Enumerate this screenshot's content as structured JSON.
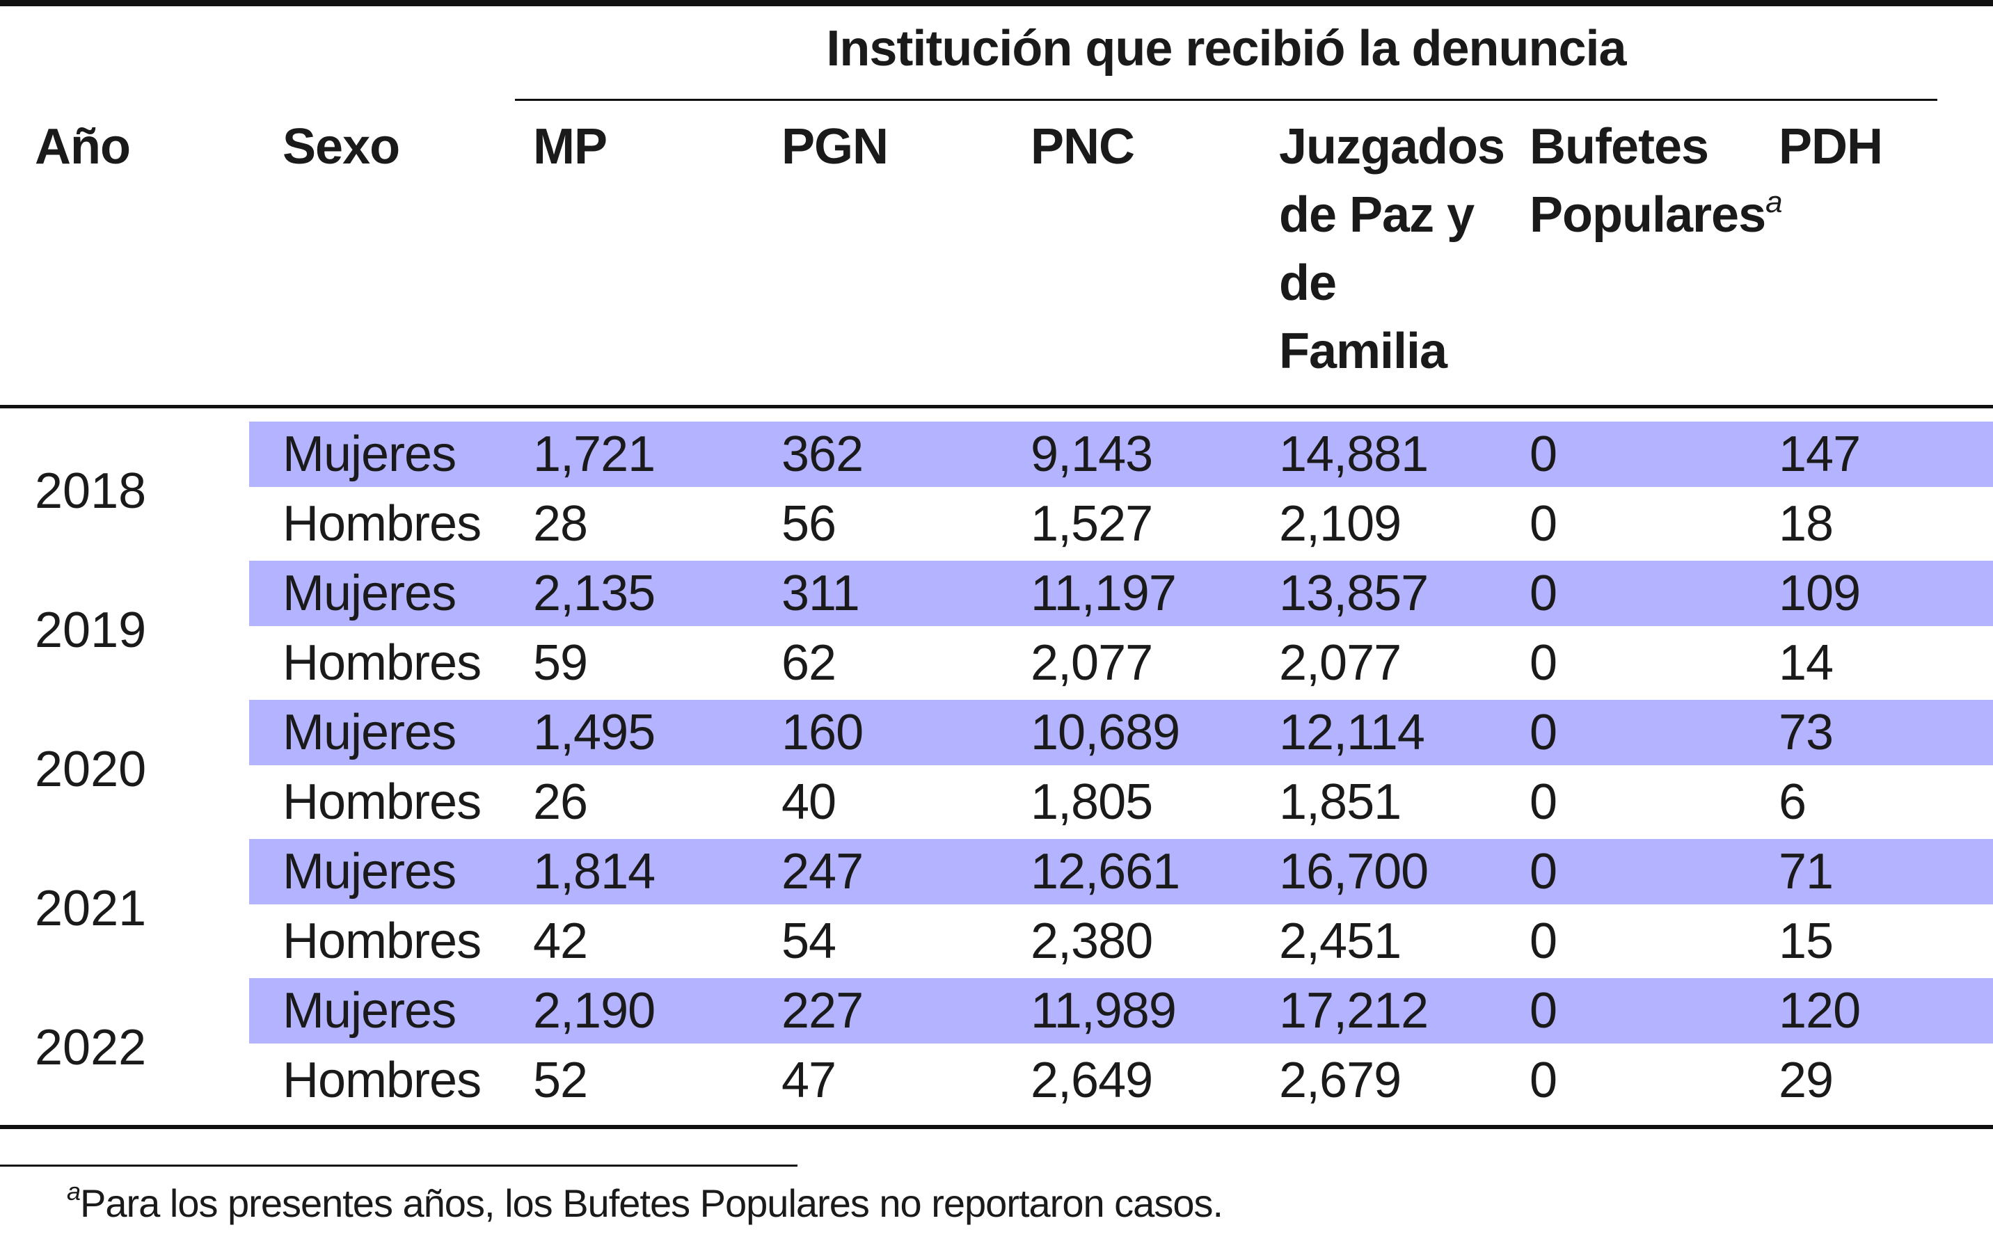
{
  "header": {
    "group_title": "Institución que recibió la denuncia",
    "col_year": "Año",
    "col_sex": "Sexo",
    "col_mp": "MP",
    "col_pgn": "PGN",
    "col_pnc": "PNC",
    "col_juzgados": "Juzgados de Paz y de Familia",
    "col_bufetes": "Bufetes Populares",
    "col_bufetes_marker": "a",
    "col_pdh": "PDH"
  },
  "rows": [
    {
      "year": "2018",
      "mujeres": {
        "sexo": "Mujeres",
        "mp": "1,721",
        "pgn": "362",
        "pnc": "9,143",
        "juzgados": "14,881",
        "bufetes": "0",
        "pdh": "147"
      },
      "hombres": {
        "sexo": "Hombres",
        "mp": "28",
        "pgn": "56",
        "pnc": "1,527",
        "juzgados": "2,109",
        "bufetes": "0",
        "pdh": "18"
      }
    },
    {
      "year": "2019",
      "mujeres": {
        "sexo": "Mujeres",
        "mp": "2,135",
        "pgn": "311",
        "pnc": "11,197",
        "juzgados": "13,857",
        "bufetes": "0",
        "pdh": "109"
      },
      "hombres": {
        "sexo": "Hombres",
        "mp": "59",
        "pgn": "62",
        "pnc": "2,077",
        "juzgados": "2,077",
        "bufetes": "0",
        "pdh": "14"
      }
    },
    {
      "year": "2020",
      "mujeres": {
        "sexo": "Mujeres",
        "mp": "1,495",
        "pgn": "160",
        "pnc": "10,689",
        "juzgados": "12,114",
        "bufetes": "0",
        "pdh": "73"
      },
      "hombres": {
        "sexo": "Hombres",
        "mp": "26",
        "pgn": "40",
        "pnc": "1,805",
        "juzgados": "1,851",
        "bufetes": "0",
        "pdh": "6"
      }
    },
    {
      "year": "2021",
      "mujeres": {
        "sexo": "Mujeres",
        "mp": "1,814",
        "pgn": "247",
        "pnc": "12,661",
        "juzgados": "16,700",
        "bufetes": "0",
        "pdh": "71"
      },
      "hombres": {
        "sexo": "Hombres",
        "mp": "42",
        "pgn": "54",
        "pnc": "2,380",
        "juzgados": "2,451",
        "bufetes": "0",
        "pdh": "15"
      }
    },
    {
      "year": "2022",
      "mujeres": {
        "sexo": "Mujeres",
        "mp": "2,190",
        "pgn": "227",
        "pnc": "11,989",
        "juzgados": "17,212",
        "bufetes": "0",
        "pdh": "120"
      },
      "hombres": {
        "sexo": "Hombres",
        "mp": "52",
        "pgn": "47",
        "pnc": "2,649",
        "juzgados": "2,679",
        "bufetes": "0",
        "pdh": "29"
      }
    }
  ],
  "footnote": {
    "marker": "a",
    "text": "Para los presentes años, los Bufetes Populares no reportaron casos."
  },
  "colors": {
    "band": "#b3b3ff",
    "rule": "#111111",
    "text": "#1a1a1a"
  }
}
